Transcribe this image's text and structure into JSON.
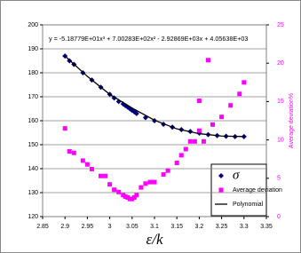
{
  "chart_data": {
    "type": "scatter",
    "equation": "y = -5.18779E+01x³ + 7.00283E+02x² - 2.92869E+03x + 4.05638E+03",
    "x_label": "ε/k",
    "y2_label": "Average deviation%",
    "xlim": [
      2.85,
      3.35
    ],
    "xticks": [
      2.85,
      2.9,
      2.95,
      3,
      3.05,
      3.1,
      3.15,
      3.2,
      3.25,
      3.3,
      3.35
    ],
    "ylim": [
      120,
      200
    ],
    "yticks": [
      120,
      130,
      140,
      150,
      160,
      170,
      180,
      190,
      200
    ],
    "y2lim": [
      0,
      25
    ],
    "y2ticks": [
      0,
      5,
      10,
      15,
      20,
      25
    ],
    "grid": true,
    "legend": "lower right",
    "series": [
      {
        "name": "σ",
        "color": "#000080",
        "marker": "diamond",
        "x": [
          2.9,
          2.91,
          2.92,
          2.94,
          2.96,
          2.98,
          3.0,
          3.01,
          3.02,
          3.03,
          3.035,
          3.04,
          3.045,
          3.05,
          3.055,
          3.06,
          3.08,
          3.1,
          3.12,
          3.14,
          3.16,
          3.18,
          3.2,
          3.22,
          3.24,
          3.26,
          3.28,
          3.3
        ],
        "values": [
          187,
          185,
          183.5,
          180,
          177,
          174,
          171,
          169.5,
          168,
          167,
          166.3,
          165.7,
          165,
          164.3,
          163.7,
          163,
          161.3,
          160,
          158.5,
          157.3,
          156.3,
          155.5,
          154.8,
          154.2,
          153.8,
          153.5,
          153.4,
          153.4
        ]
      },
      {
        "name": "Average deviation",
        "color": "#ff00ff",
        "marker": "square",
        "axis": "y2",
        "x": [
          2.9,
          2.91,
          2.92,
          2.94,
          2.95,
          2.96,
          2.98,
          2.99,
          3.0,
          3.01,
          3.02,
          3.03,
          3.035,
          3.04,
          3.045,
          3.05,
          3.055,
          3.06,
          3.07,
          3.08,
          3.09,
          3.1,
          3.12,
          3.13,
          3.15,
          3.16,
          3.17,
          3.18,
          3.19,
          3.2,
          3.2,
          3.21,
          3.22,
          3.23,
          3.25,
          3.27,
          3.29,
          3.3
        ],
        "values": [
          11.5,
          8.5,
          8.3,
          7.3,
          6.8,
          6.2,
          5.3,
          5.3,
          4.2,
          3.5,
          3.2,
          2.8,
          2.6,
          2.5,
          2.3,
          2.3,
          2.5,
          2.8,
          3.8,
          4.3,
          4.5,
          4.5,
          5.5,
          6.0,
          7.0,
          8.0,
          8.8,
          9.8,
          9.8,
          11.2,
          15.1,
          9.8,
          20.4,
          12,
          13,
          14.5,
          16,
          17.5
        ]
      },
      {
        "name": "Polynomial",
        "color": "#000000",
        "marker": "line",
        "x": [
          2.9,
          2.95,
          3.0,
          3.05,
          3.1,
          3.15,
          3.2,
          3.25,
          3.3
        ],
        "values": [
          187,
          178.5,
          171,
          165.3,
          160.2,
          156.6,
          154.6,
          153.6,
          153.4
        ]
      }
    ]
  }
}
